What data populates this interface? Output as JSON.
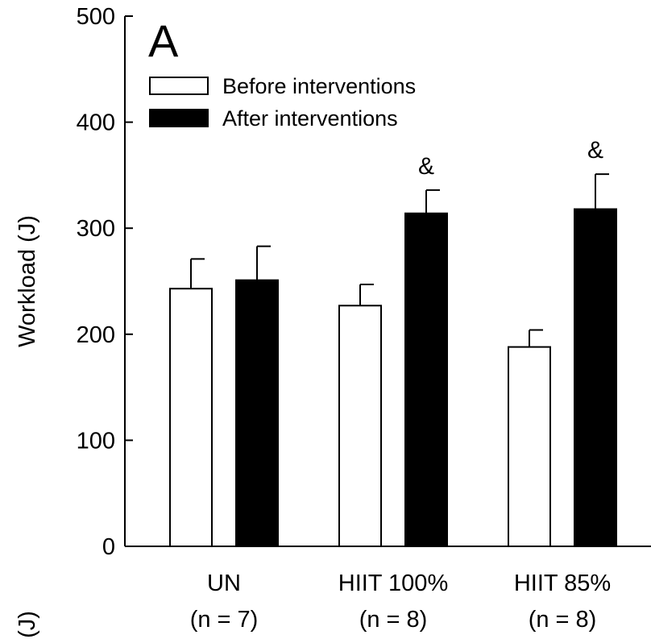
{
  "chart_data": {
    "type": "bar",
    "panel_label": "A",
    "ylabel": "Workload (J)",
    "xlabel": "",
    "ylim": [
      0,
      500
    ],
    "yticks": [
      "0",
      "100",
      "200",
      "300",
      "400",
      "500"
    ],
    "categories": [
      {
        "line1": "UN",
        "line2": "(n = 7)"
      },
      {
        "line1": "HIIT 100%",
        "line2": "(n = 8)"
      },
      {
        "line1": "HIIT 85%",
        "line2": "(n = 8)"
      }
    ],
    "series": [
      {
        "name": "Before interventions",
        "color": "#ffffff",
        "values": [
          243,
          227,
          188
        ],
        "errors": [
          28,
          20,
          16
        ]
      },
      {
        "name": "After interventions",
        "color": "#000000",
        "values": [
          251,
          314,
          318
        ],
        "errors": [
          32,
          22,
          33
        ]
      }
    ],
    "annotations": [
      {
        "category_index": 1,
        "series_index": 1,
        "text": "&"
      },
      {
        "category_index": 2,
        "series_index": 1,
        "text": "&"
      }
    ],
    "legend_position": "top-left",
    "grid": false,
    "cutoff_text": "(J)"
  }
}
